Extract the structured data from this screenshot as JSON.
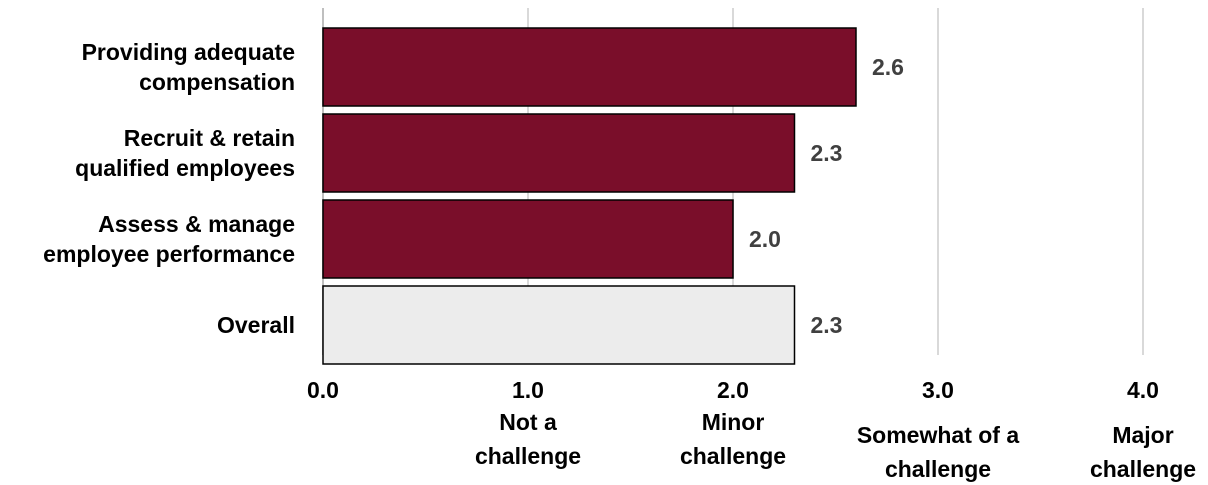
{
  "chart_data": {
    "type": "bar",
    "orientation": "horizontal",
    "categories": [
      [
        "Providing adequate",
        "compensation"
      ],
      [
        "Recruit & retain",
        "qualified employees"
      ],
      [
        "Assess & manage",
        "employee performance"
      ],
      [
        "Overall"
      ]
    ],
    "values": [
      2.6,
      2.3,
      2.0,
      2.3
    ],
    "value_labels": [
      "2.6",
      "2.3",
      "2.0",
      "2.3"
    ],
    "bar_colors": [
      "#7a0e2a",
      "#7a0e2a",
      "#7a0e2a",
      "#ececec"
    ],
    "bar_stroke": "#000000",
    "xlim": [
      0,
      4
    ],
    "ticks": [
      {
        "value": 0,
        "label": "0.0",
        "sub": []
      },
      {
        "value": 1,
        "label": "1.0",
        "sub": [
          "Not a",
          "challenge"
        ]
      },
      {
        "value": 2,
        "label": "2.0",
        "sub": [
          "Minor",
          "challenge"
        ]
      },
      {
        "value": 3,
        "label": "3.0",
        "sub": [
          "Somewhat of a",
          "challenge"
        ]
      },
      {
        "value": 4,
        "label": "4.0",
        "sub": [
          "Major",
          "challenge"
        ]
      }
    ],
    "grid": true,
    "grid_color": "#d9d9d9",
    "legend": "none",
    "title": "",
    "xlabel": "",
    "ylabel": ""
  }
}
